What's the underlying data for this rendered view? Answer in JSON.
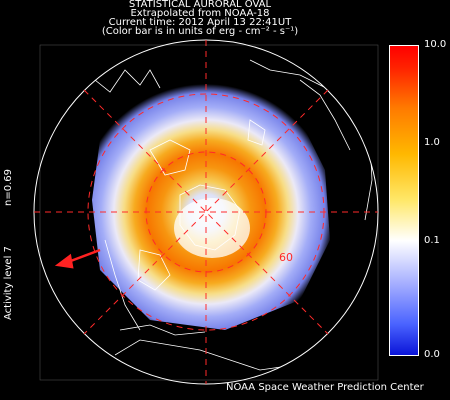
{
  "header": {
    "line1": "STATISTICAL AURORAL OVAL",
    "line2": "Extrapolated from NOAA-18",
    "line3": "Current time: 2012 April 13 22:41UT",
    "line4": "(Color bar is in units of erg - cm⁻² - s⁻¹)"
  },
  "side": {
    "n_label": "n=0.69",
    "activity_label": "Activity level 7"
  },
  "map": {
    "latitude_label": "60"
  },
  "colorbar": {
    "ticks": [
      "10.0",
      "1.0",
      "0.1",
      "0.0"
    ]
  },
  "footer": {
    "credit": "NOAA Space Weather Prediction Center"
  },
  "colors": {
    "background": "#000000",
    "grid": "#ff2a2a",
    "arrow": "#ff2222",
    "coastline": "#ffffff"
  }
}
